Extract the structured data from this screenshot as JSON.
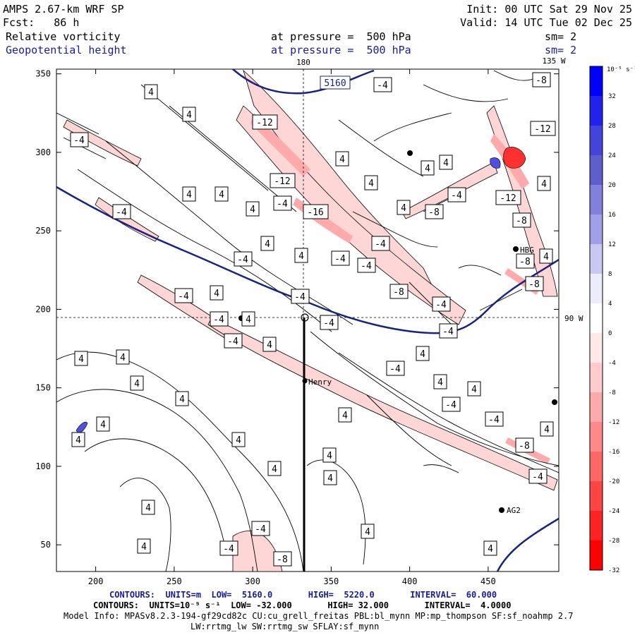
{
  "header": {
    "model": "AMPS 2.67-km WRF SP",
    "init": "Init: 00 UTC Sat 29 Nov 25",
    "fcst_label": "Fcst:",
    "fcst_value": "86 h",
    "valid": "Valid: 14 UTC Tue 02 Dec 25",
    "field1": "Relative vorticity",
    "pressure1": "at pressure =  500 hPa",
    "sm1": "sm= 2",
    "field2": "Geopotential height",
    "pressure2": "at pressure =  500 hPa",
    "sm2": "sm= 2"
  },
  "map_labels": {
    "lon_180": "180",
    "lon_135w": "135 W",
    "lat_90w": "90 W",
    "stations": [
      "Henry",
      "AG2",
      "HBG"
    ]
  },
  "axes": {
    "x_ticks": [
      "200",
      "250",
      "300",
      "350",
      "400",
      "450"
    ],
    "y_ticks": [
      "350",
      "300",
      "250",
      "200",
      "150",
      "100",
      "50"
    ]
  },
  "colorbar": {
    "unit_label": "10⁻⁵ s⁻¹",
    "labels": [
      "32",
      "28",
      "24",
      "20",
      "16",
      "12",
      "8",
      "4",
      "0",
      "-4",
      "-8",
      "-12",
      "-16",
      "-20",
      "-24",
      "-28",
      "-32"
    ],
    "colors": [
      "#0000ff",
      "#2222ee",
      "#4444dd",
      "#5f5fcc",
      "#8080dd",
      "#a0a0e8",
      "#c8c8f2",
      "#ececfa",
      "#ffffff",
      "#ffe8e8",
      "#ffcccc",
      "#ffaaaa",
      "#ff8888",
      "#ff6666",
      "#ff4444",
      "#ff2222",
      "#ff0000"
    ]
  },
  "contour_labels": {
    "height": "5160",
    "vort": [
      "4",
      "-4",
      "-8",
      "-12",
      "-16"
    ]
  },
  "footer": {
    "line1_a": "CONTOURS:  UNITS=m  LOW=  5160.0",
    "line1_b": "HIGH=  5220.0",
    "line1_c": "INTERVAL=  60.000",
    "line2": "CONTOURS:  UNITS=10⁻⁵ s⁻¹  LOW= -32.000       HIGH= 32.000       INTERVAL=  4.0000",
    "line3": "Model Info: MPASv8.2.3-194-gf29cd82c CU:cu_grell_freitas PBL:bl_mynn MP:mp_thompson SF:sf_noahmp 2.7",
    "line4": "LW:rrtmg_lw SW:rrtmg_sw SFLAY:sf_mynn"
  }
}
